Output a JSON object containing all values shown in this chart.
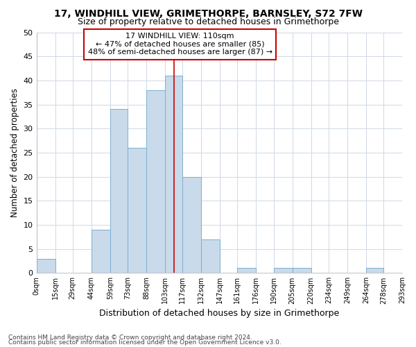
{
  "title1": "17, WINDHILL VIEW, GRIMETHORPE, BARNSLEY, S72 7FW",
  "title2": "Size of property relative to detached houses in Grimethorpe",
  "xlabel": "Distribution of detached houses by size in Grimethorpe",
  "ylabel": "Number of detached properties",
  "footnote1": "Contains HM Land Registry data © Crown copyright and database right 2024.",
  "footnote2": "Contains public sector information licensed under the Open Government Licence v3.0.",
  "bin_edges": [
    0,
    15,
    29,
    44,
    59,
    73,
    88,
    103,
    117,
    132,
    147,
    161,
    176,
    190,
    205,
    220,
    234,
    249,
    264,
    278,
    293
  ],
  "bar_heights": [
    3,
    0,
    0,
    9,
    34,
    26,
    38,
    41,
    20,
    7,
    0,
    1,
    0,
    1,
    1,
    0,
    0,
    0,
    1,
    0
  ],
  "bar_color": "#c9daea",
  "bar_edgecolor": "#7bafd4",
  "vline_x": 110,
  "vline_color": "#cc0000",
  "annotation_text": "17 WINDHILL VIEW: 110sqm\n← 47% of detached houses are smaller (85)\n48% of semi-detached houses are larger (87) →",
  "annotation_box_facecolor": "white",
  "annotation_box_edgecolor": "#cc0000",
  "ylim": [
    0,
    50
  ],
  "yticks": [
    0,
    5,
    10,
    15,
    20,
    25,
    30,
    35,
    40,
    45,
    50
  ],
  "tick_labels": [
    "0sqm",
    "15sqm",
    "29sqm",
    "44sqm",
    "59sqm",
    "73sqm",
    "88sqm",
    "103sqm",
    "117sqm",
    "132sqm",
    "147sqm",
    "161sqm",
    "176sqm",
    "190sqm",
    "205sqm",
    "220sqm",
    "234sqm",
    "249sqm",
    "264sqm",
    "278sqm",
    "293sqm"
  ],
  "fig_background": "#ffffff",
  "axes_background": "#ffffff",
  "grid_color": "#d0d8e4",
  "title1_fontsize": 10,
  "title2_fontsize": 9,
  "xlabel_fontsize": 9,
  "ylabel_fontsize": 8.5,
  "tick_fontsize": 7,
  "ytick_fontsize": 8,
  "annotation_fontsize": 8,
  "footnote_fontsize": 6.5
}
